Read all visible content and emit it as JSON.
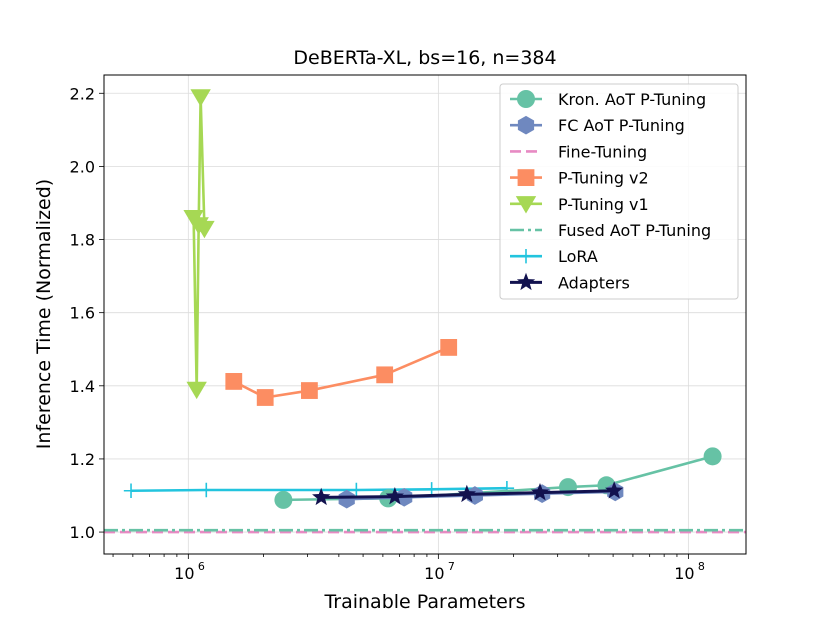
{
  "colors": {
    "kron": "#66c2a5",
    "fc": "#6f88bf",
    "fine": "#e78ac3",
    "ptv2": "#fc8d62",
    "ptv1": "#a6d854",
    "fused": "#66c2a5",
    "lora": "#22c4de",
    "adapters": "#12124f"
  },
  "chart_data": {
    "type": "line",
    "title": "DeBERTa-XL, bs=16, n=384",
    "xlabel": "Trainable Parameters",
    "ylabel": "Inference Time (Normalized)",
    "xscale": "log",
    "xlim": [
      460000,
      170000000
    ],
    "ylim": [
      0.94,
      2.25
    ],
    "grid": true,
    "legend_position": "top-right",
    "yticks": [
      1.0,
      1.2,
      1.4,
      1.6,
      1.8,
      2.0,
      2.2
    ],
    "ytick_labels": [
      "1.0",
      "1.2",
      "1.4",
      "1.6",
      "1.8",
      "2.0",
      "2.2"
    ],
    "xticks": [
      1000000,
      10000000,
      100000000
    ],
    "xtick_labels": [
      {
        "base": "10",
        "exp": "6"
      },
      {
        "base": "10",
        "exp": "7"
      },
      {
        "base": "10",
        "exp": "8"
      }
    ],
    "series": [
      {
        "key": "kron",
        "name": "Kron. AoT P-Tuning",
        "marker": "circle",
        "dash": "solid",
        "x": [
          2400000,
          6300000,
          33000000,
          47000000,
          125000000
        ],
        "y": [
          1.088,
          1.092,
          1.123,
          1.128,
          1.207
        ]
      },
      {
        "key": "fc",
        "name": "FC AoT P-Tuning",
        "marker": "hexagon",
        "dash": "solid",
        "x": [
          4300000,
          7300000,
          14000000,
          26000000,
          51000000
        ],
        "y": [
          1.09,
          1.095,
          1.1,
          1.105,
          1.11
        ]
      },
      {
        "key": "fine",
        "name": "Fine-Tuning",
        "marker": "none",
        "dash": "dashed",
        "hline": 1.0
      },
      {
        "key": "ptv2",
        "name": "P-Tuning v2",
        "marker": "square",
        "dash": "solid",
        "x": [
          1520000,
          2030000,
          3050000,
          6100000,
          11000000
        ],
        "y": [
          1.412,
          1.368,
          1.387,
          1.43,
          1.505
        ]
      },
      {
        "key": "ptv1",
        "name": "P-Tuning v1",
        "marker": "triangle-down",
        "dash": "solid",
        "x": [
          1050000,
          1080000,
          1100000,
          1120000,
          1160000
        ],
        "y": [
          1.86,
          1.39,
          1.84,
          2.19,
          1.83
        ]
      },
      {
        "key": "fused",
        "name": "Fused AoT P-Tuning",
        "marker": "none",
        "dash": "dashdot",
        "hline": 1.005
      },
      {
        "key": "lora",
        "name": "LoRA",
        "marker": "plus",
        "dash": "solid",
        "x": [
          590000,
          1180000,
          4700000,
          9400000,
          18800000
        ],
        "y": [
          1.113,
          1.115,
          1.115,
          1.117,
          1.12
        ]
      },
      {
        "key": "adapters",
        "name": "Adapters",
        "marker": "star",
        "dash": "solid",
        "x": [
          3400000,
          6700000,
          13000000,
          25500000,
          50500000
        ],
        "y": [
          1.095,
          1.097,
          1.103,
          1.108,
          1.113
        ]
      }
    ]
  }
}
